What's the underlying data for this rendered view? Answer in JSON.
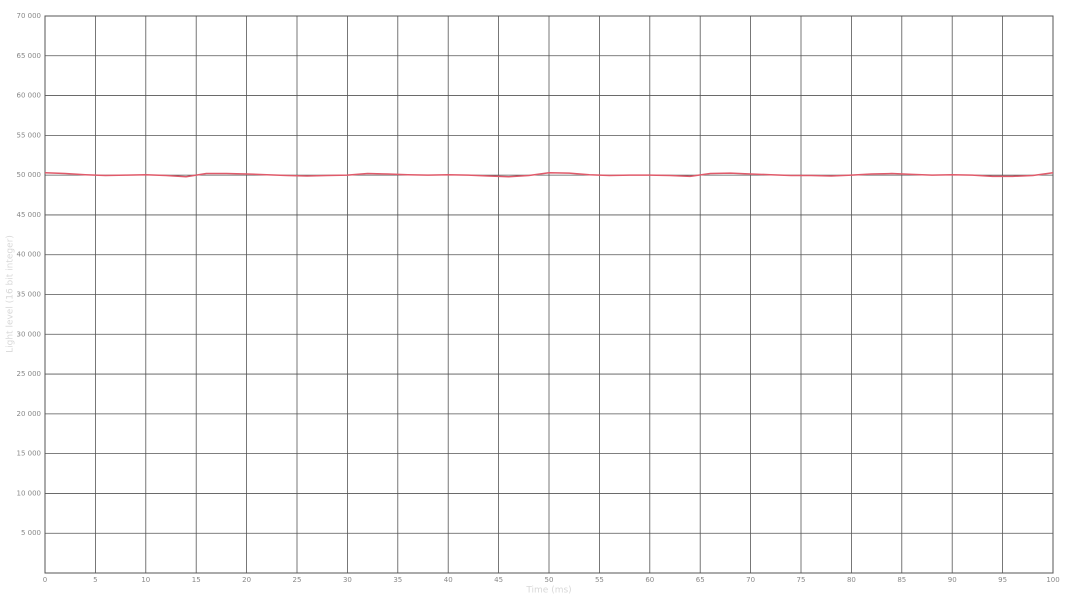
{
  "chart_data": {
    "type": "line",
    "x_label": "Time (ms)",
    "y_label": "Light level (16 bit integer)",
    "x": [
      0,
      2,
      4,
      6,
      8,
      10,
      12,
      14,
      16,
      18,
      20,
      22,
      24,
      26,
      28,
      30,
      32,
      34,
      36,
      38,
      40,
      42,
      44,
      46,
      48,
      50,
      52,
      54,
      56,
      58,
      60,
      62,
      64,
      66,
      68,
      70,
      72,
      74,
      76,
      78,
      80,
      82,
      84,
      86,
      88,
      90,
      92,
      94,
      96,
      98,
      100
    ],
    "values": [
      50300,
      50200,
      50050,
      49950,
      50000,
      50050,
      49950,
      49800,
      50200,
      50200,
      50150,
      50050,
      49950,
      49900,
      49950,
      50000,
      50200,
      50150,
      50050,
      50000,
      50050,
      50000,
      49900,
      49800,
      49950,
      50300,
      50250,
      50050,
      49950,
      50000,
      50000,
      49950,
      49850,
      50200,
      50250,
      50150,
      50050,
      49950,
      49950,
      49900,
      50000,
      50150,
      50200,
      50100,
      50000,
      50050,
      50000,
      49850,
      49850,
      49950,
      50300
    ],
    "color": "#e05a6a",
    "xlim": [
      0,
      100
    ],
    "ylim": [
      0,
      70000
    ],
    "xticks": [
      0,
      5,
      10,
      15,
      20,
      25,
      30,
      35,
      40,
      45,
      50,
      55,
      60,
      65,
      70,
      75,
      80,
      85,
      90,
      95,
      100
    ],
    "yticks": [
      {
        "value": 5000,
        "label": "5 000"
      },
      {
        "value": 10000,
        "label": "10 000"
      },
      {
        "value": 15000,
        "label": "15 000"
      },
      {
        "value": 20000,
        "label": "20 000"
      },
      {
        "value": 25000,
        "label": "25 000"
      },
      {
        "value": 30000,
        "label": "30 000"
      },
      {
        "value": 35000,
        "label": "35 000"
      },
      {
        "value": 40000,
        "label": "40 000"
      },
      {
        "value": 45000,
        "label": "45 000"
      },
      {
        "value": 50000,
        "label": "50 000"
      },
      {
        "value": 55000,
        "label": "55 000"
      },
      {
        "value": 60000,
        "label": "60 000"
      },
      {
        "value": 65000,
        "label": "65 000"
      },
      {
        "value": 70000,
        "label": "70 000"
      }
    ],
    "grid": true
  }
}
